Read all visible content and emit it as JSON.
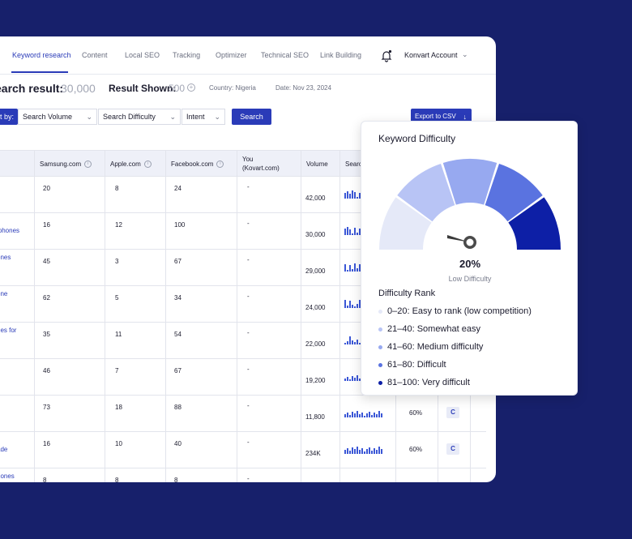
{
  "colors": {
    "background": "#17206b",
    "accent": "#2a3bb8",
    "bars": "#3b57d6"
  },
  "nav": {
    "tabs": [
      "Keyword research",
      "Content",
      "Local SEO",
      "Tracking",
      "Optimizer",
      "Technical SEO",
      "Link Building"
    ],
    "active_tab": "Keyword research",
    "account": "Konvart Account",
    "icons": {
      "notification": "bell-icon",
      "account_menu": "chevron-down-icon"
    }
  },
  "summary": {
    "search_result_label": "earch result:",
    "search_result_value": "30,000",
    "result_shown_label": "Result Shown:",
    "result_shown_value": "500",
    "plus_icon": "+",
    "country": "Country: Nigeria",
    "date": "Date: Nov 23, 2024"
  },
  "filters": {
    "label": "t by:",
    "dropdowns": [
      "Search Volume",
      "Search Difficulty",
      "Intent"
    ],
    "chevron": "⌄",
    "search_button": "Search",
    "export_button": "Export to CSV",
    "export_icon": "↓"
  },
  "table": {
    "headers": [
      "Samsung.com",
      "Apple.com",
      "Facebook.com",
      "You",
      "(Kovart.com)",
      "Volume",
      "Searc"
    ],
    "info_icon": "i",
    "rows": [
      {
        "keyword": [
          "",
          ""
        ],
        "samsung": "20",
        "apple": "8",
        "facebook": "24",
        "you": "-",
        "volume": "42,000",
        "pct": "",
        "badge": ""
      },
      {
        "keyword": [
          "",
          "iphones"
        ],
        "samsung": "16",
        "apple": "12",
        "facebook": "100",
        "you": "-",
        "volume": "30,000",
        "pct": "",
        "badge": ""
      },
      {
        "keyword": [
          "ones",
          ""
        ],
        "samsung": "45",
        "apple": "3",
        "facebook": "67",
        "you": "-",
        "volume": "29,000",
        "pct": "",
        "badge": ""
      },
      {
        "keyword": [
          "one",
          ""
        ],
        "samsung": "62",
        "apple": "5",
        "facebook": "34",
        "you": "-",
        "volume": "24,000",
        "pct": "",
        "badge": ""
      },
      {
        "keyword": [
          "nes for",
          ""
        ],
        "samsung": "35",
        "apple": "11",
        "facebook": "54",
        "you": "-",
        "volume": "22,000",
        "pct": "",
        "badge": ""
      },
      {
        "keyword": [
          "",
          ""
        ],
        "samsung": "46",
        "apple": "7",
        "facebook": "67",
        "you": "-",
        "volume": "19,200",
        "pct": "",
        "badge": ""
      },
      {
        "keyword": [
          "h",
          ""
        ],
        "samsung": "73",
        "apple": "18",
        "facebook": "88",
        "you": "-",
        "volume": "11,800",
        "pct": "60%",
        "badge": "C"
      },
      {
        "keyword": [
          "",
          "ade"
        ],
        "samsung": "16",
        "apple": "10",
        "facebook": "40",
        "you": "-",
        "volume": "234K",
        "pct": "60%",
        "badge": "C"
      },
      {
        "keyword": [
          "hones",
          ""
        ],
        "samsung": "8",
        "apple": "8",
        "facebook": "8",
        "you": "-",
        "volume": "",
        "pct": "",
        "badge": ""
      }
    ]
  },
  "difficulty_card": {
    "title": "Keyword Difficulty",
    "value": 20,
    "value_label": "20%",
    "level_label": "Low Difficulty",
    "rank_title": "Difficulty Rank",
    "ranks": [
      {
        "label": "0–20: Easy to rank (low competition)",
        "color": "#e5e9f8"
      },
      {
        "label": "21–40: Somewhat easy",
        "color": "#b8c4f5"
      },
      {
        "label": "41–60: Medium difficulty",
        "color": "#97a9f0"
      },
      {
        "label": "61–80: Difficult",
        "color": "#5a73e0"
      },
      {
        "label": "81–100: Very difficult",
        "color": "#0d1fa6"
      }
    ]
  }
}
